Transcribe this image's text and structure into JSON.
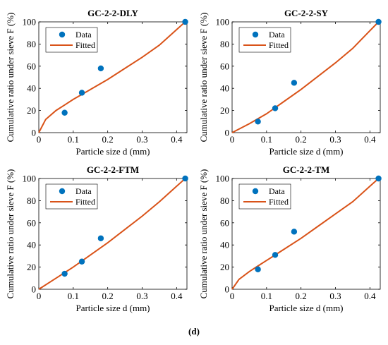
{
  "figure": {
    "caption": "(d)"
  },
  "chart_data": [
    {
      "type": "scatter",
      "title": "GC-2-2-DLY",
      "xlabel": "Particle size d (mm)",
      "ylabel": "Cumulative ratio under sieve F (%)",
      "xlim": [
        0,
        0.43
      ],
      "ylim": [
        0,
        100
      ],
      "xticks": [
        0,
        0.1,
        0.2,
        0.3,
        0.4
      ],
      "xtick_labels": [
        "0",
        "0.1",
        "0.2",
        "0.3",
        "0.4"
      ],
      "yticks": [
        0,
        20,
        40,
        60,
        80,
        100
      ],
      "ytick_labels": [
        "0",
        "20",
        "40",
        "60",
        "80",
        "100"
      ],
      "legend": {
        "placement": "top-left",
        "entries": [
          "Data",
          "Fitted"
        ]
      },
      "series": [
        {
          "name": "Data",
          "kind": "markers",
          "color": "#0072BD",
          "x": [
            0.075,
            0.125,
            0.18,
            0.425
          ],
          "y": [
            18,
            36,
            58,
            100
          ]
        },
        {
          "name": "Fitted",
          "kind": "line",
          "color": "#D95319",
          "x": [
            0,
            0.02,
            0.05,
            0.075,
            0.1,
            0.15,
            0.2,
            0.25,
            0.3,
            0.35,
            0.4,
            0.425
          ],
          "y": [
            0,
            12,
            20,
            25,
            30,
            39,
            48,
            58,
            68,
            79,
            93,
            100
          ]
        }
      ]
    },
    {
      "type": "scatter",
      "title": "GC-2-2-SY",
      "xlabel": "Particle size d (mm)",
      "ylabel": "Cumulative ratio under sieve F (%)",
      "xlim": [
        0,
        0.43
      ],
      "ylim": [
        0,
        100
      ],
      "xticks": [
        0,
        0.1,
        0.2,
        0.3,
        0.4
      ],
      "xtick_labels": [
        "0",
        "0.1",
        "0.2",
        "0.3",
        "0.4"
      ],
      "yticks": [
        0,
        20,
        40,
        60,
        80,
        100
      ],
      "ytick_labels": [
        "0",
        "20",
        "40",
        "60",
        "80",
        "100"
      ],
      "legend": {
        "placement": "top-left",
        "entries": [
          "Data",
          "Fitted"
        ]
      },
      "series": [
        {
          "name": "Data",
          "kind": "markers",
          "color": "#0072BD",
          "x": [
            0.075,
            0.125,
            0.18,
            0.425
          ],
          "y": [
            10,
            22,
            45,
            100
          ]
        },
        {
          "name": "Fitted",
          "kind": "line",
          "color": "#D95319",
          "x": [
            0,
            0.05,
            0.1,
            0.15,
            0.2,
            0.25,
            0.3,
            0.35,
            0.4,
            0.425
          ],
          "y": [
            0,
            8,
            17,
            28,
            39,
            51,
            63,
            76,
            92,
            100
          ]
        }
      ]
    },
    {
      "type": "scatter",
      "title": "GC-2-2-FTM",
      "xlabel": "Particle size d (mm)",
      "ylabel": "Cumulative ratio under sieve F (%)",
      "xlim": [
        0,
        0.43
      ],
      "ylim": [
        0,
        100
      ],
      "xticks": [
        0,
        0.1,
        0.2,
        0.3,
        0.4
      ],
      "xtick_labels": [
        "0",
        "0.1",
        "0.2",
        "0.3",
        "0.4"
      ],
      "yticks": [
        0,
        20,
        40,
        60,
        80,
        100
      ],
      "ytick_labels": [
        "0",
        "20",
        "40",
        "60",
        "80",
        "100"
      ],
      "legend": {
        "placement": "top-left",
        "entries": [
          "Data",
          "Fitted"
        ]
      },
      "series": [
        {
          "name": "Data",
          "kind": "markers",
          "color": "#0072BD",
          "x": [
            0.075,
            0.125,
            0.18,
            0.425
          ],
          "y": [
            14,
            25,
            46,
            100
          ]
        },
        {
          "name": "Fitted",
          "kind": "line",
          "color": "#D95319",
          "x": [
            0,
            0.05,
            0.1,
            0.15,
            0.2,
            0.25,
            0.3,
            0.35,
            0.4,
            0.425
          ],
          "y": [
            0,
            10,
            20,
            31,
            42,
            54,
            66,
            79,
            93,
            100
          ]
        }
      ]
    },
    {
      "type": "scatter",
      "title": "GC-2-2-TM",
      "xlabel": "Particle size d (mm)",
      "ylabel": "Cumulative ratio under sieve F (%)",
      "xlim": [
        0,
        0.43
      ],
      "ylim": [
        0,
        100
      ],
      "xticks": [
        0,
        0.1,
        0.2,
        0.3,
        0.4
      ],
      "xtick_labels": [
        "0",
        "0.1",
        "0.2",
        "0.3",
        "0.4"
      ],
      "yticks": [
        0,
        20,
        40,
        60,
        80,
        100
      ],
      "ytick_labels": [
        "0",
        "20",
        "40",
        "60",
        "80",
        "100"
      ],
      "legend": {
        "placement": "top-left",
        "entries": [
          "Data",
          "Fitted"
        ]
      },
      "series": [
        {
          "name": "Data",
          "kind": "markers",
          "color": "#0072BD",
          "x": [
            0.075,
            0.125,
            0.18,
            0.425
          ],
          "y": [
            18,
            31,
            52,
            100
          ]
        },
        {
          "name": "Fitted",
          "kind": "line",
          "color": "#D95319",
          "x": [
            0,
            0.02,
            0.05,
            0.075,
            0.1,
            0.15,
            0.2,
            0.25,
            0.3,
            0.35,
            0.4,
            0.425
          ],
          "y": [
            0,
            9,
            16,
            21,
            26,
            36,
            46,
            57,
            68,
            79,
            93,
            100
          ]
        }
      ]
    }
  ]
}
